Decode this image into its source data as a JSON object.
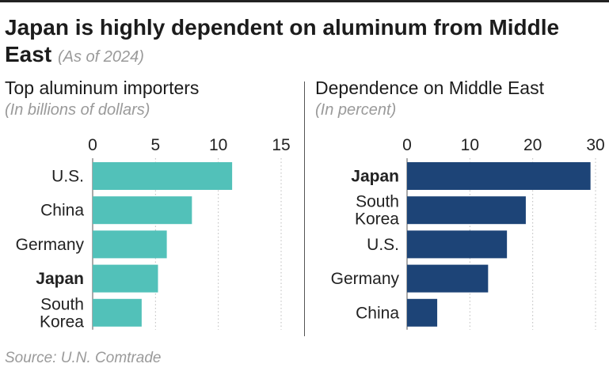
{
  "header": {
    "title": "Japan is highly dependent on aluminum from Middle East",
    "note": "(As of 2024)"
  },
  "chart_data": [
    {
      "type": "bar",
      "orientation": "horizontal",
      "title": "Top aluminum importers",
      "subtitle": "(In billions of dollars)",
      "categories": [
        [
          "U.S."
        ],
        [
          "China"
        ],
        [
          "Germany"
        ],
        [
          "Japan"
        ],
        [
          "South",
          "Korea"
        ]
      ],
      "highlight": "Japan",
      "values": [
        11.1,
        7.9,
        5.9,
        5.2,
        3.9
      ],
      "ticks": [
        0,
        5,
        10,
        15
      ],
      "xlim": [
        0,
        15
      ],
      "grid": true,
      "color": "#52c1b9"
    },
    {
      "type": "bar",
      "orientation": "horizontal",
      "title": "Dependence on Middle East",
      "subtitle": "(In percent)",
      "categories": [
        [
          "Japan"
        ],
        [
          "South",
          "Korea"
        ],
        [
          "U.S."
        ],
        [
          "Germany"
        ],
        [
          "China"
        ]
      ],
      "highlight": "Japan",
      "values": [
        29.2,
        18.9,
        15.9,
        12.9,
        4.8
      ],
      "ticks": [
        0,
        10,
        20,
        30
      ],
      "xlim": [
        0,
        30
      ],
      "grid": true,
      "color": "#1d4477"
    }
  ],
  "source": "Source: U.N. Comtrade"
}
